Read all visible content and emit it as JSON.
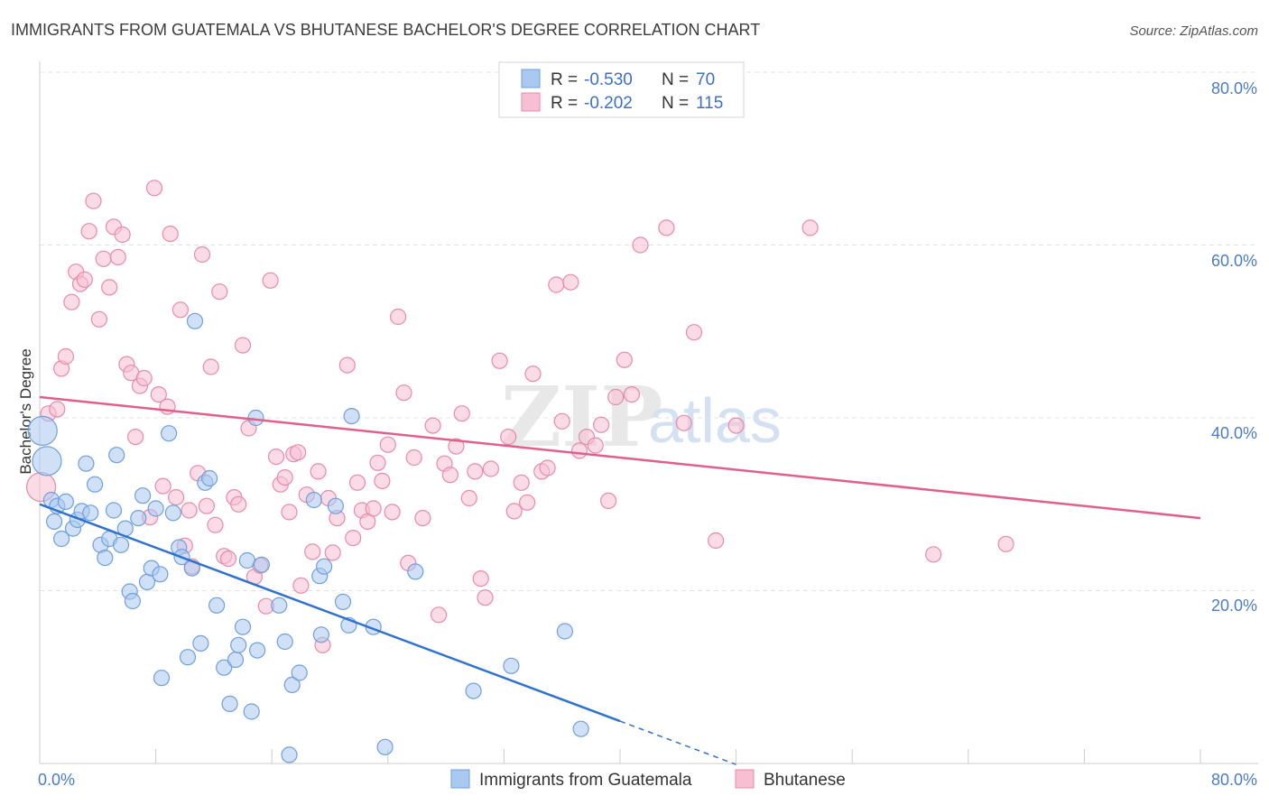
{
  "chart_data": {
    "type": "scatter",
    "title": "IMMIGRANTS FROM GUATEMALA VS BHUTANESE BACHELOR'S DEGREE CORRELATION CHART",
    "source": "Source: ZipAtlas.com",
    "ylabel": "Bachelor's Degree",
    "xlim": [
      0,
      80
    ],
    "ylim": [
      0,
      80
    ],
    "y_ticks": [
      "80.0%",
      "60.0%",
      "40.0%",
      "20.0%"
    ],
    "y_tick_values": [
      80,
      60,
      40,
      20
    ],
    "x_tick_left": "0.0%",
    "x_tick_right": "80.0%",
    "grid": true,
    "watermark": {
      "zip": "ZIP",
      "atlas": "atlas"
    },
    "legend": [
      {
        "r_label": "R =",
        "r_value": "-0.530",
        "n_label": "N =",
        "n_value": "70"
      },
      {
        "r_label": "R =",
        "r_value": "-0.202",
        "n_label": "N =",
        "n_value": "115"
      }
    ],
    "series": [
      {
        "name": "Immigrants from Guatemala",
        "color": "#a9c9f0",
        "stroke": "#6f9fdc",
        "line_color": "#2f72d0",
        "trend": {
          "x0": 0,
          "y0": 30.0,
          "x1": 40,
          "y1": 4.9,
          "dash_to_x": 48
        },
        "points": [
          [
            0.2,
            38.5
          ],
          [
            0.5,
            35.0
          ],
          [
            0.8,
            30.5
          ],
          [
            1.0,
            28.0
          ],
          [
            1.2,
            29.8
          ],
          [
            1.5,
            26.0
          ],
          [
            1.8,
            30.3
          ],
          [
            2.3,
            27.2
          ],
          [
            2.6,
            28.2
          ],
          [
            2.9,
            29.2
          ],
          [
            3.2,
            34.7
          ],
          [
            3.5,
            29.0
          ],
          [
            3.8,
            32.3
          ],
          [
            4.2,
            25.3
          ],
          [
            4.5,
            23.8
          ],
          [
            4.8,
            26.0
          ],
          [
            5.1,
            29.3
          ],
          [
            5.3,
            35.7
          ],
          [
            5.6,
            25.3
          ],
          [
            5.9,
            27.2
          ],
          [
            6.2,
            19.9
          ],
          [
            6.4,
            18.8
          ],
          [
            6.8,
            28.4
          ],
          [
            7.1,
            31.0
          ],
          [
            7.4,
            21.0
          ],
          [
            7.7,
            22.6
          ],
          [
            8.0,
            29.5
          ],
          [
            8.3,
            21.9
          ],
          [
            8.4,
            9.9
          ],
          [
            8.9,
            38.2
          ],
          [
            9.2,
            29.0
          ],
          [
            9.6,
            25.0
          ],
          [
            9.8,
            23.9
          ],
          [
            10.2,
            12.3
          ],
          [
            10.5,
            22.6
          ],
          [
            10.7,
            51.2
          ],
          [
            11.1,
            13.9
          ],
          [
            11.4,
            32.5
          ],
          [
            11.7,
            33.0
          ],
          [
            12.2,
            18.3
          ],
          [
            12.7,
            11.1
          ],
          [
            13.1,
            6.9
          ],
          [
            13.5,
            12.0
          ],
          [
            13.7,
            13.7
          ],
          [
            14.0,
            15.8
          ],
          [
            14.3,
            23.5
          ],
          [
            14.6,
            6.0
          ],
          [
            14.9,
            40.0
          ],
          [
            15.0,
            13.1
          ],
          [
            15.3,
            23.0
          ],
          [
            16.5,
            18.3
          ],
          [
            16.9,
            14.1
          ],
          [
            17.2,
            1.0
          ],
          [
            17.4,
            9.1
          ],
          [
            17.9,
            10.5
          ],
          [
            18.9,
            30.5
          ],
          [
            19.3,
            21.7
          ],
          [
            19.4,
            14.9
          ],
          [
            19.6,
            22.8
          ],
          [
            20.4,
            29.8
          ],
          [
            20.9,
            18.7
          ],
          [
            21.3,
            16.0
          ],
          [
            21.5,
            40.2
          ],
          [
            23.0,
            15.8
          ],
          [
            23.8,
            1.9
          ],
          [
            25.9,
            22.2
          ],
          [
            29.9,
            8.4
          ],
          [
            32.5,
            11.3
          ],
          [
            36.2,
            15.3
          ],
          [
            37.3,
            4.0
          ]
        ]
      },
      {
        "name": "Bhutanese",
        "color": "#f7bfd2",
        "stroke": "#e88aa9",
        "line_color": "#e0608a",
        "trend": {
          "x0": 0,
          "y0": 42.4,
          "x1": 80,
          "y1": 28.4
        },
        "points": [
          [
            0.1,
            32.0
          ],
          [
            0.6,
            40.5
          ],
          [
            1.2,
            41.0
          ],
          [
            1.5,
            45.7
          ],
          [
            1.8,
            47.1
          ],
          [
            2.2,
            53.4
          ],
          [
            2.5,
            56.9
          ],
          [
            2.8,
            55.5
          ],
          [
            3.1,
            56.0
          ],
          [
            3.4,
            61.6
          ],
          [
            3.7,
            65.1
          ],
          [
            4.1,
            51.4
          ],
          [
            4.4,
            58.4
          ],
          [
            4.8,
            55.1
          ],
          [
            5.1,
            62.1
          ],
          [
            5.4,
            58.6
          ],
          [
            5.7,
            61.2
          ],
          [
            6.0,
            46.2
          ],
          [
            6.3,
            45.2
          ],
          [
            6.6,
            37.8
          ],
          [
            6.9,
            43.7
          ],
          [
            7.2,
            44.6
          ],
          [
            7.6,
            28.5
          ],
          [
            7.9,
            66.6
          ],
          [
            8.2,
            42.7
          ],
          [
            8.5,
            32.1
          ],
          [
            8.8,
            41.3
          ],
          [
            9.0,
            61.3
          ],
          [
            9.4,
            30.8
          ],
          [
            9.7,
            52.5
          ],
          [
            10.0,
            25.2
          ],
          [
            10.3,
            29.3
          ],
          [
            10.5,
            22.8
          ],
          [
            10.9,
            33.6
          ],
          [
            11.2,
            58.9
          ],
          [
            11.5,
            29.8
          ],
          [
            11.8,
            45.9
          ],
          [
            12.1,
            27.6
          ],
          [
            12.4,
            54.6
          ],
          [
            12.7,
            24.0
          ],
          [
            13.0,
            23.7
          ],
          [
            13.4,
            30.8
          ],
          [
            13.7,
            30.0
          ],
          [
            14.0,
            48.4
          ],
          [
            14.4,
            38.8
          ],
          [
            14.8,
            21.6
          ],
          [
            15.2,
            22.9
          ],
          [
            15.6,
            18.2
          ],
          [
            15.9,
            55.9
          ],
          [
            16.3,
            35.5
          ],
          [
            16.6,
            32.3
          ],
          [
            16.9,
            33.1
          ],
          [
            17.2,
            29.1
          ],
          [
            17.5,
            35.8
          ],
          [
            17.8,
            36.0
          ],
          [
            18.0,
            20.6
          ],
          [
            18.4,
            31.1
          ],
          [
            18.8,
            24.5
          ],
          [
            19.2,
            33.8
          ],
          [
            19.5,
            13.7
          ],
          [
            19.9,
            30.7
          ],
          [
            20.2,
            24.4
          ],
          [
            20.5,
            28.4
          ],
          [
            21.2,
            46.1
          ],
          [
            21.6,
            26.1
          ],
          [
            21.9,
            32.5
          ],
          [
            22.2,
            29.3
          ],
          [
            22.6,
            28.0
          ],
          [
            23.0,
            29.5
          ],
          [
            23.3,
            34.8
          ],
          [
            23.6,
            32.7
          ],
          [
            24.0,
            36.9
          ],
          [
            24.3,
            29.1
          ],
          [
            24.7,
            51.7
          ],
          [
            25.1,
            42.9
          ],
          [
            25.4,
            23.2
          ],
          [
            25.8,
            35.4
          ],
          [
            26.4,
            28.4
          ],
          [
            27.1,
            39.1
          ],
          [
            27.5,
            17.2
          ],
          [
            27.9,
            34.7
          ],
          [
            28.3,
            33.4
          ],
          [
            28.7,
            36.7
          ],
          [
            29.1,
            40.5
          ],
          [
            29.6,
            30.7
          ],
          [
            30.0,
            33.8
          ],
          [
            30.4,
            21.4
          ],
          [
            30.7,
            19.2
          ],
          [
            31.1,
            34.1
          ],
          [
            31.7,
            46.6
          ],
          [
            32.3,
            37.8
          ],
          [
            32.7,
            29.2
          ],
          [
            33.2,
            32.5
          ],
          [
            33.6,
            30.2
          ],
          [
            34.0,
            45.1
          ],
          [
            34.6,
            33.8
          ],
          [
            35.0,
            34.2
          ],
          [
            35.6,
            55.4
          ],
          [
            36.0,
            39.6
          ],
          [
            36.6,
            55.7
          ],
          [
            37.2,
            36.2
          ],
          [
            37.7,
            37.8
          ],
          [
            38.3,
            36.8
          ],
          [
            38.7,
            39.2
          ],
          [
            39.2,
            30.4
          ],
          [
            39.7,
            42.4
          ],
          [
            40.3,
            46.7
          ],
          [
            40.8,
            42.7
          ],
          [
            41.4,
            60.0
          ],
          [
            43.2,
            62.0
          ],
          [
            44.4,
            39.4
          ],
          [
            45.1,
            49.9
          ],
          [
            46.6,
            25.8
          ],
          [
            48.0,
            39.1
          ],
          [
            53.1,
            62.0
          ],
          [
            61.6,
            24.2
          ],
          [
            66.6,
            25.4
          ]
        ]
      }
    ]
  }
}
